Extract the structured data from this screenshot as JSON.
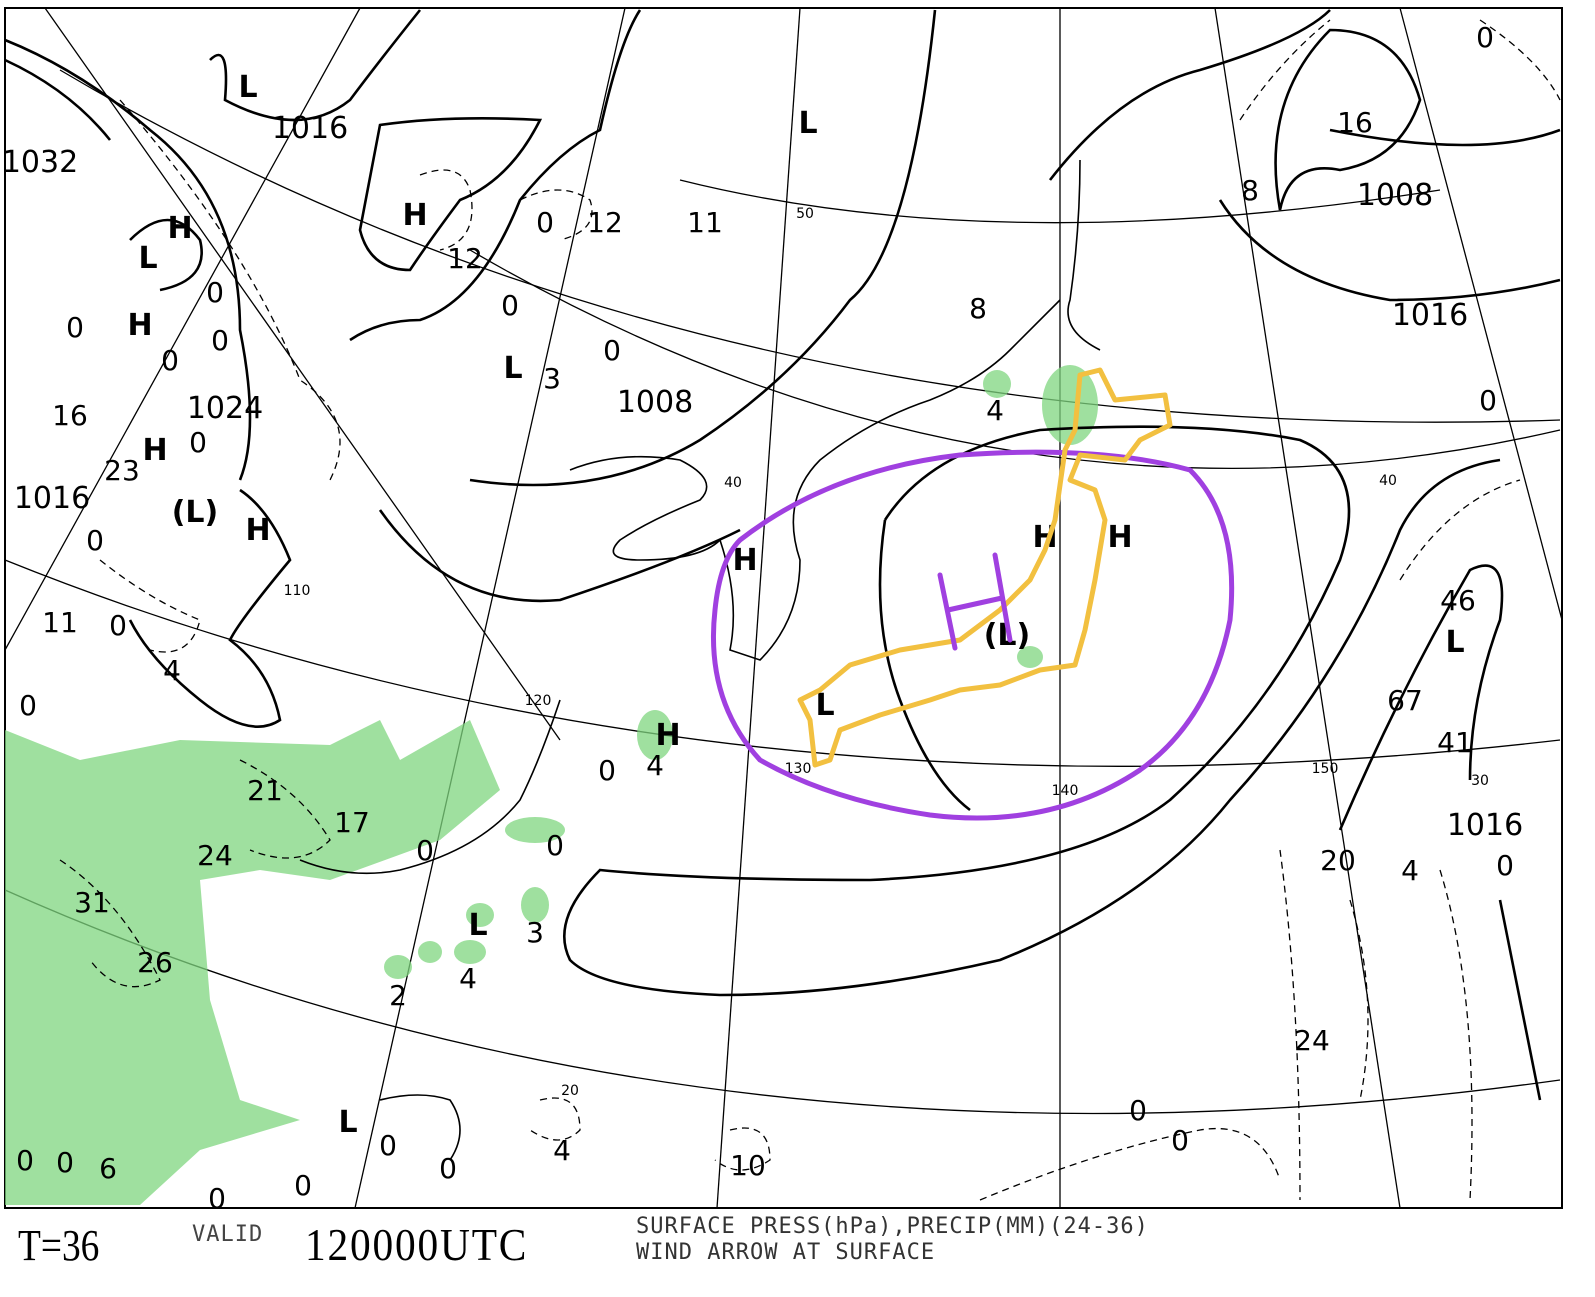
{
  "footer": {
    "forecast_time": "T=36",
    "valid_label": "VALID",
    "valid_time": "120000UTC",
    "description_line1": "SURFACE PRESS(hPa),PRECIP(MM)(24-36)",
    "description_line2": "WIND ARROW AT SURFACE"
  },
  "map": {
    "colors": {
      "isobar": "#000000",
      "precip": "#7fd67f",
      "annotation_ellipse": "#a040e0",
      "annotation_japan": "#f2c040"
    },
    "isobar_labels": [
      "1016",
      "1032",
      "1024",
      "1016",
      "1008",
      "1008",
      "1016",
      "1016"
    ],
    "high_labels": [
      "H",
      "H",
      "H",
      "H",
      "H",
      "H",
      "H",
      "H",
      "H"
    ],
    "low_labels": [
      "L",
      "L",
      "L",
      "L",
      "(L)",
      "L",
      "(L)",
      "L",
      "L",
      "L"
    ],
    "precip_amounts": [
      "12",
      "12",
      "11",
      "0",
      "0",
      "3",
      "0",
      "8",
      "4",
      "16",
      "23",
      "0",
      "11",
      "0",
      "4",
      "0",
      "21",
      "17",
      "24",
      "31",
      "26",
      "0",
      "0",
      "0",
      "4",
      "3",
      "4",
      "2",
      "4",
      "10",
      "0",
      "0",
      "0",
      "0",
      "0",
      "0",
      "6",
      "0",
      "0",
      "24",
      "20",
      "4",
      "0",
      "41",
      "67",
      "46",
      "0",
      "8",
      "0",
      "16",
      "0",
      "0",
      "0",
      "0",
      "0"
    ],
    "latitude_labels": [
      "50",
      "40",
      "40",
      "30",
      "20"
    ],
    "longitude_labels": [
      "110",
      "120",
      "130",
      "140",
      "150"
    ],
    "annotation_high": "H"
  }
}
